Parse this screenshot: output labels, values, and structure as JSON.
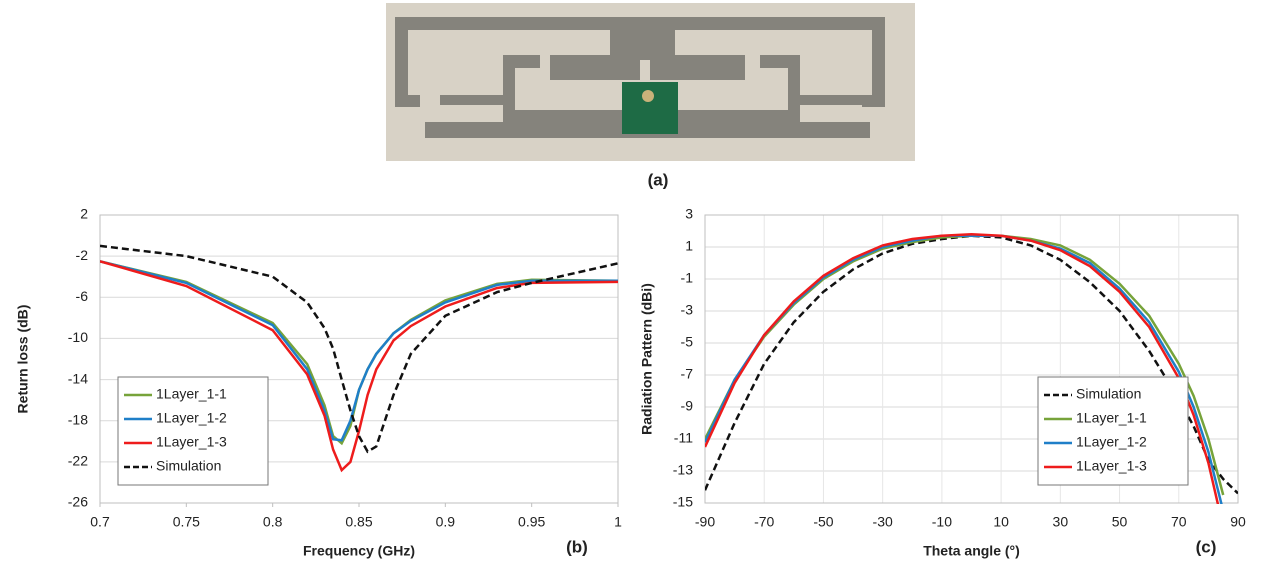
{
  "figure": {
    "photo_label": "(a)"
  },
  "chart_data": [
    {
      "type": "line",
      "panel_label": "(b)",
      "xlabel": "Frequency (GHz)",
      "ylabel": "Return loss (dB)",
      "x": [
        0.7,
        0.75,
        0.8,
        0.82,
        0.83,
        0.835,
        0.84,
        0.845,
        0.85,
        0.855,
        0.86,
        0.87,
        0.88,
        0.9,
        0.93,
        0.95,
        1
      ],
      "xlim": [
        0.7,
        1
      ],
      "xticks": [
        0.7,
        0.75,
        0.8,
        0.85,
        0.9,
        0.95,
        1
      ],
      "ylim": [
        -26,
        2
      ],
      "yticks": [
        -26,
        -22,
        -18,
        -14,
        -10,
        -6,
        -2,
        2
      ],
      "grid": "y",
      "legend": "lower left",
      "series": [
        {
          "name": "1Layer_1-1",
          "color": "#77a33a",
          "dashed": false,
          "values": [
            -2.5,
            -4.5,
            -8.5,
            -12.5,
            -16.5,
            -19.5,
            -20.2,
            -18.5,
            -15,
            -13,
            -11.5,
            -9.5,
            -8.2,
            -6.3,
            -4.7,
            -4.3,
            -4.4
          ]
        },
        {
          "name": "1Layer_1-2",
          "color": "#1f7fc8",
          "dashed": false,
          "values": [
            -2.5,
            -4.6,
            -8.7,
            -13,
            -17,
            -19.8,
            -19.9,
            -18,
            -15,
            -13,
            -11.5,
            -9.5,
            -8.3,
            -6.5,
            -4.8,
            -4.4,
            -4.4
          ]
        },
        {
          "name": "1Layer_1-3",
          "color": "#ee1c1c",
          "dashed": false,
          "values": [
            -2.5,
            -4.9,
            -9.2,
            -13.5,
            -17.5,
            -20.8,
            -22.8,
            -22,
            -19,
            -15.5,
            -13,
            -10.2,
            -8.8,
            -6.9,
            -5.1,
            -4.6,
            -4.5
          ]
        },
        {
          "name": "Simulation",
          "color": "#111111",
          "dashed": true,
          "values": [
            -1,
            -2,
            -4,
            -6.5,
            -9,
            -11,
            -14,
            -17,
            -19.5,
            -21,
            -20.5,
            -15.5,
            -11.5,
            -7.8,
            -5.5,
            -4.6,
            -2.7
          ]
        }
      ]
    },
    {
      "type": "line",
      "panel_label": "(c)",
      "xlabel": "Theta angle (°)",
      "ylabel": "Radiation Pattern (dBi)",
      "x": [
        -90,
        -80,
        -70,
        -60,
        -50,
        -40,
        -30,
        -20,
        -10,
        0,
        10,
        20,
        30,
        40,
        50,
        60,
        70,
        75,
        80,
        85,
        90
      ],
      "xlim": [
        -90,
        90
      ],
      "xticks": [
        -90,
        -70,
        -50,
        -30,
        -10,
        10,
        30,
        50,
        70,
        90
      ],
      "ylim": [
        -15,
        3
      ],
      "yticks": [
        -15,
        -13,
        -11,
        -9,
        -7,
        -5,
        -3,
        -1,
        1,
        3
      ],
      "grid": "both",
      "legend": "lower right",
      "series": [
        {
          "name": "Simulation",
          "color": "#111111",
          "dashed": true,
          "values": [
            -14.2,
            -10,
            -6.3,
            -3.7,
            -1.8,
            -0.4,
            0.6,
            1.2,
            1.5,
            1.7,
            1.6,
            1.1,
            0.2,
            -1.2,
            -3,
            -5.5,
            -8.5,
            -10.2,
            -12.3,
            -13.5,
            -14.4
          ]
        },
        {
          "name": "1Layer_1-1",
          "color": "#77a33a",
          "dashed": false,
          "values": [
            -11,
            -7.3,
            -4.6,
            -2.6,
            -1,
            0.1,
            0.9,
            1.3,
            1.6,
            1.7,
            1.7,
            1.5,
            1.1,
            0.2,
            -1.3,
            -3.3,
            -6.3,
            -8.3,
            -11,
            -14.5,
            null
          ]
        },
        {
          "name": "1Layer_1-2",
          "color": "#1f7fc8",
          "dashed": false,
          "values": [
            -11.2,
            -7.3,
            -4.5,
            -2.5,
            -0.9,
            0.2,
            1,
            1.4,
            1.7,
            1.7,
            1.7,
            1.4,
            0.9,
            0,
            -1.6,
            -3.7,
            -6.8,
            -9,
            -11.8,
            -15.5,
            null
          ]
        },
        {
          "name": "1Layer_1-3",
          "color": "#ee1c1c",
          "dashed": false,
          "values": [
            -11.5,
            -7.5,
            -4.5,
            -2.4,
            -0.8,
            0.3,
            1.1,
            1.5,
            1.7,
            1.8,
            1.7,
            1.4,
            0.8,
            -0.2,
            -1.8,
            -4,
            -7.2,
            -9.5,
            -12.5,
            -16.5,
            null
          ]
        }
      ]
    }
  ]
}
